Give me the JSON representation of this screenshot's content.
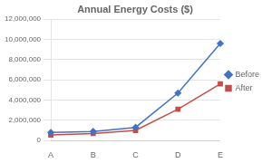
{
  "chart_data": {
    "type": "line",
    "title": "Annual Energy Costs ($)",
    "categories": [
      "A",
      "B",
      "C",
      "D",
      "E"
    ],
    "series": [
      {
        "name": "Before",
        "color": "#4472C4",
        "marker": "diamond",
        "values": [
          800000,
          900000,
          1300000,
          4700000,
          9600000
        ]
      },
      {
        "name": "After",
        "color": "#C0504D",
        "marker": "square",
        "values": [
          550000,
          700000,
          1000000,
          3100000,
          5600000
        ]
      }
    ],
    "ylim": [
      0,
      12000000
    ],
    "yticks": [
      0,
      {
        "value": 2000000,
        "label": "2,000,000"
      },
      {
        "value": 4000000,
        "label": "4,000,000"
      },
      {
        "value": 6000000,
        "label": "6,000,000"
      },
      {
        "value": 8000000,
        "label": "8,000,000"
      },
      {
        "value": 10000000,
        "label": "10,000,000"
      },
      {
        "value": 12000000,
        "label": "12,000,000"
      }
    ],
    "grid": true,
    "legend": "right"
  }
}
